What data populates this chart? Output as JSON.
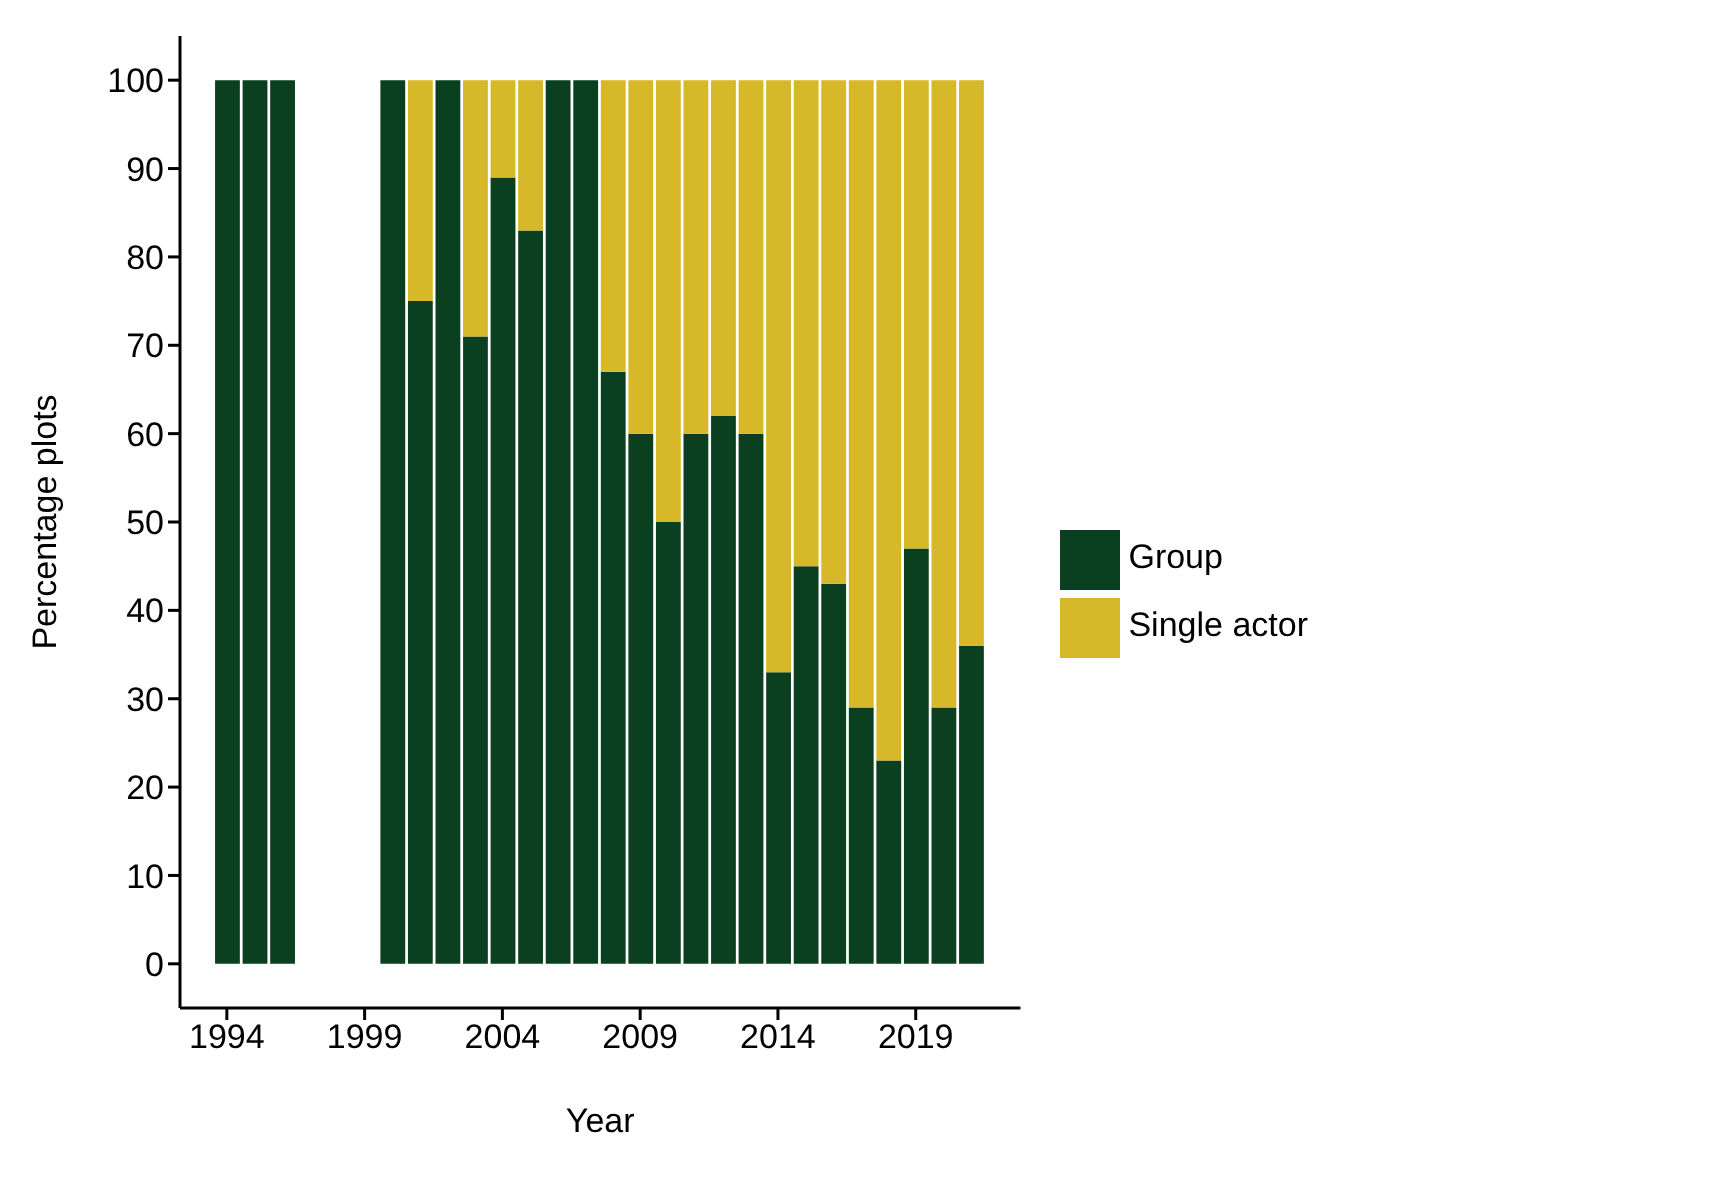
{
  "chart_data": {
    "type": "bar",
    "xlabel": "Year",
    "ylabel": "Percentage plots",
    "stacked": true,
    "x": [
      1994,
      1995,
      1996,
      2000,
      2001,
      2002,
      2003,
      2004,
      2005,
      2006,
      2007,
      2008,
      2009,
      2010,
      2011,
      2012,
      2013,
      2014,
      2015,
      2016,
      2017,
      2018,
      2019,
      2020,
      2021
    ],
    "series": [
      {
        "name": "Group",
        "color": "#0a3f1f",
        "values": [
          100,
          100,
          100,
          100,
          75,
          100,
          71,
          89,
          83,
          100,
          100,
          67,
          60,
          50,
          60,
          62,
          60,
          33,
          45,
          43,
          29,
          23,
          47,
          29,
          36
        ]
      },
      {
        "name": "Single actor",
        "color": "#d6b829",
        "values": [
          0,
          0,
          0,
          0,
          25,
          0,
          29,
          11,
          17,
          0,
          0,
          33,
          40,
          50,
          40,
          38,
          40,
          67,
          55,
          57,
          71,
          77,
          53,
          71,
          64
        ]
      }
    ],
    "xlim": [
      1992.3,
      2022.8
    ],
    "xticks": [
      1994,
      1999,
      2004,
      2009,
      2014,
      2019
    ],
    "ylim": [
      -5,
      105
    ],
    "yticks": [
      0,
      10,
      20,
      30,
      40,
      50,
      60,
      70,
      80,
      90,
      100
    ],
    "grid": false,
    "legend": "right"
  }
}
